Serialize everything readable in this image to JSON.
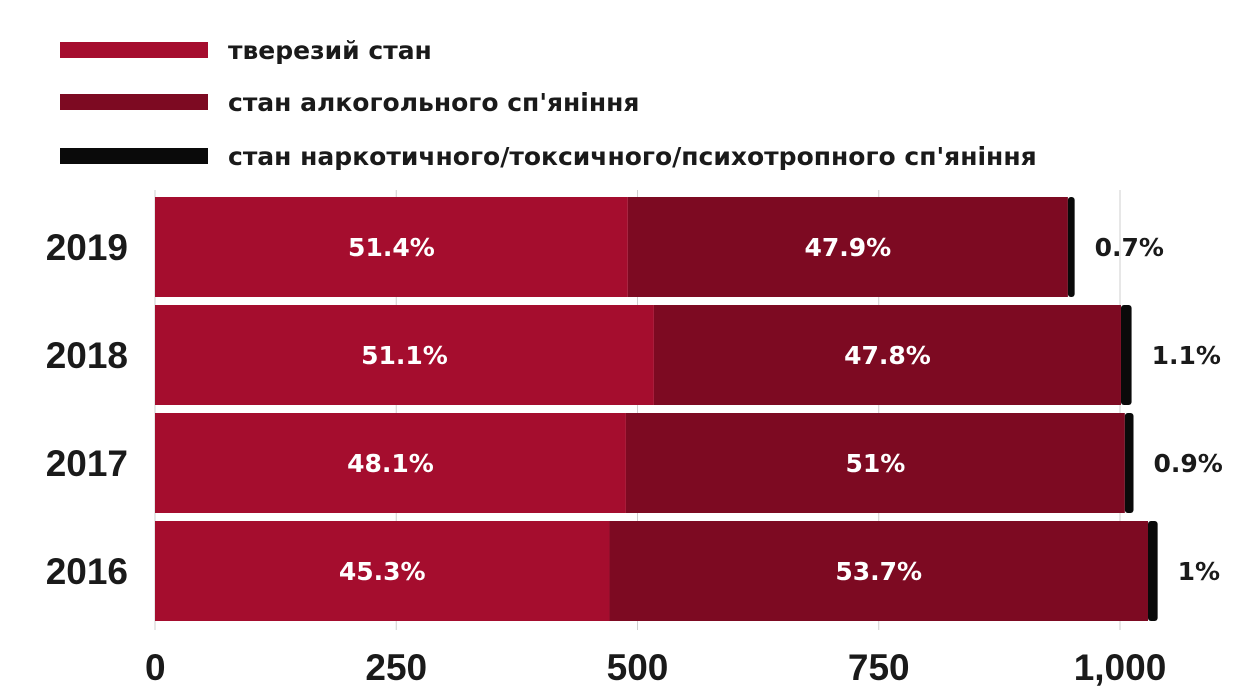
{
  "chart_data": {
    "type": "bar",
    "orientation": "horizontal",
    "stacked": true,
    "categories": [
      "2019",
      "2018",
      "2017",
      "2016"
    ],
    "series": [
      {
        "name": "тверезий стан",
        "color": "#a50d2e",
        "values": [
          490,
          517,
          488,
          471
        ],
        "labels": [
          "51.4%",
          "51.1%",
          "48.1%",
          "45.3%"
        ]
      },
      {
        "name": "стан алкогольного сп'яніння",
        "color": "#7d0a22",
        "values": [
          456,
          484,
          517,
          558
        ],
        "labels": [
          "47.9%",
          "47.8%",
          "51%",
          "53.7%"
        ]
      },
      {
        "name": "стан наркотичного/токсичного/психотропного сп'яніння",
        "color": "#0a0a0a",
        "values": [
          7,
          11,
          9,
          10
        ],
        "labels": [
          "0.7%",
          "1.1%",
          "0.9%",
          "1%"
        ]
      }
    ],
    "x_ticks": [
      "0",
      "250",
      "500",
      "750",
      "1,000"
    ],
    "x_tick_values": [
      0,
      250,
      500,
      750,
      1000
    ],
    "xlim": [
      0,
      1000
    ],
    "grid": "vertical",
    "legend_position": "top-left"
  }
}
